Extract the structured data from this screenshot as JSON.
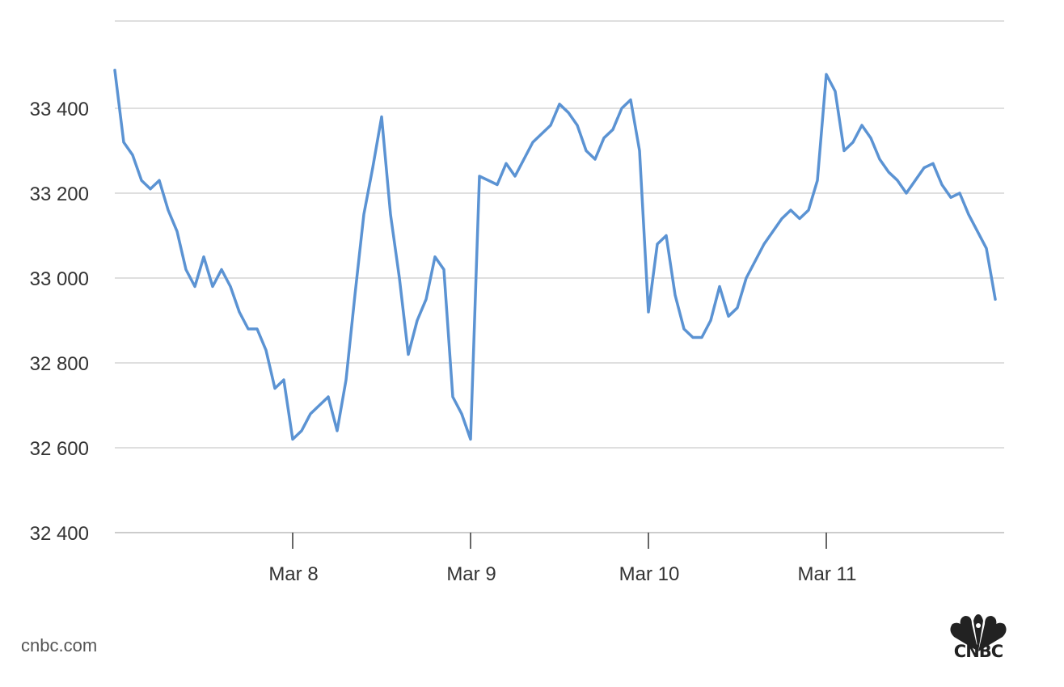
{
  "chart_data": {
    "type": "line",
    "title": "",
    "xlabel": "",
    "ylabel": "",
    "x_tick_labels": [
      "Mar 8",
      "Mar 9",
      "Mar 10",
      "Mar 11"
    ],
    "y_tick_labels": [
      "32 400",
      "32 600",
      "32 800",
      "33 000",
      "33 200",
      "33 400"
    ],
    "y_ticks": [
      32400,
      32600,
      32800,
      33000,
      33200,
      33400
    ],
    "ylim": [
      32400,
      33600
    ],
    "grid": true,
    "colors": {
      "line": "#5b93d3",
      "grid": "#cccccc",
      "axis": "#bbbbbb"
    },
    "series": [
      {
        "x": [
          "Mar 7 00:00",
          "Mar 7 01:12",
          "Mar 7 02:24",
          "Mar 7 03:36",
          "Mar 7 04:48",
          "Mar 7 06:00",
          "Mar 7 07:12",
          "Mar 7 08:24",
          "Mar 7 09:36",
          "Mar 7 10:48",
          "Mar 7 12:00",
          "Mar 7 13:12",
          "Mar 7 14:24",
          "Mar 7 15:36",
          "Mar 7 16:48",
          "Mar 7 18:00",
          "Mar 7 19:12",
          "Mar 7 20:24",
          "Mar 7 21:36",
          "Mar 7 22:48",
          "Mar 8 00:00",
          "Mar 8 01:12",
          "Mar 8 02:24",
          "Mar 8 03:36",
          "Mar 8 04:48",
          "Mar 8 06:00",
          "Mar 8 07:12",
          "Mar 8 08:24",
          "Mar 8 09:36",
          "Mar 8 10:48",
          "Mar 8 12:00",
          "Mar 8 13:12",
          "Mar 8 14:24",
          "Mar 8 15:36",
          "Mar 8 16:48",
          "Mar 8 18:00",
          "Mar 8 19:12",
          "Mar 8 20:24",
          "Mar 8 21:36",
          "Mar 8 22:48",
          "Mar 9 00:00",
          "Mar 9 01:12",
          "Mar 9 02:24",
          "Mar 9 03:36",
          "Mar 9 04:48",
          "Mar 9 06:00",
          "Mar 9 07:12",
          "Mar 9 08:24",
          "Mar 9 09:36",
          "Mar 9 10:48",
          "Mar 9 12:00",
          "Mar 9 13:12",
          "Mar 9 14:24",
          "Mar 9 15:36",
          "Mar 9 16:48",
          "Mar 9 18:00",
          "Mar 9 19:12",
          "Mar 9 20:24",
          "Mar 9 21:36",
          "Mar 9 22:48",
          "Mar 10 00:00",
          "Mar 10 01:12",
          "Mar 10 02:24",
          "Mar 10 03:36",
          "Mar 10 04:48",
          "Mar 10 06:00",
          "Mar 10 07:12",
          "Mar 10 08:24",
          "Mar 10 09:36",
          "Mar 10 10:48",
          "Mar 10 12:00",
          "Mar 10 13:12",
          "Mar 10 14:24",
          "Mar 10 15:36",
          "Mar 10 16:48",
          "Mar 10 18:00",
          "Mar 10 19:12",
          "Mar 10 20:24",
          "Mar 10 21:36",
          "Mar 10 22:48",
          "Mar 11 00:00",
          "Mar 11 01:12",
          "Mar 11 02:24",
          "Mar 11 03:36",
          "Mar 11 04:48",
          "Mar 11 06:00",
          "Mar 11 07:12",
          "Mar 11 08:24",
          "Mar 11 09:36",
          "Mar 11 10:48",
          "Mar 11 12:00",
          "Mar 11 13:12",
          "Mar 11 14:24",
          "Mar 11 15:36",
          "Mar 11 16:48",
          "Mar 11 18:00",
          "Mar 11 19:12",
          "Mar 11 20:24",
          "Mar 11 21:36",
          "Mar 11 22:48"
        ],
        "values": [
          33490,
          33320,
          33290,
          33230,
          33210,
          33230,
          33160,
          33110,
          33020,
          32980,
          33050,
          32980,
          33020,
          32980,
          32920,
          32880,
          32880,
          32830,
          32740,
          32760,
          32620,
          32640,
          32680,
          32700,
          32720,
          32640,
          32760,
          32960,
          33150,
          33260,
          33380,
          33150,
          33000,
          32820,
          32900,
          32950,
          33050,
          33020,
          32720,
          32680,
          32620,
          33240,
          33230,
          33220,
          33270,
          33240,
          33280,
          33320,
          33340,
          33360,
          33410,
          33390,
          33360,
          33300,
          33280,
          33330,
          33350,
          33400,
          33420,
          33300,
          32920,
          33080,
          33100,
          32960,
          32880,
          32860,
          32860,
          32900,
          32980,
          32910,
          32930,
          33000,
          33040,
          33080,
          33110,
          33140,
          33160,
          33140,
          33160,
          33230,
          33480,
          33440,
          33300,
          33320,
          33360,
          33330,
          33280,
          33250,
          33230,
          33200,
          33230,
          33260,
          33270,
          33220,
          33190,
          33200,
          33150,
          33110,
          33070,
          32950
        ]
      }
    ]
  },
  "footer": {
    "source": "cnbc.com",
    "logo_text": "CNBC"
  }
}
